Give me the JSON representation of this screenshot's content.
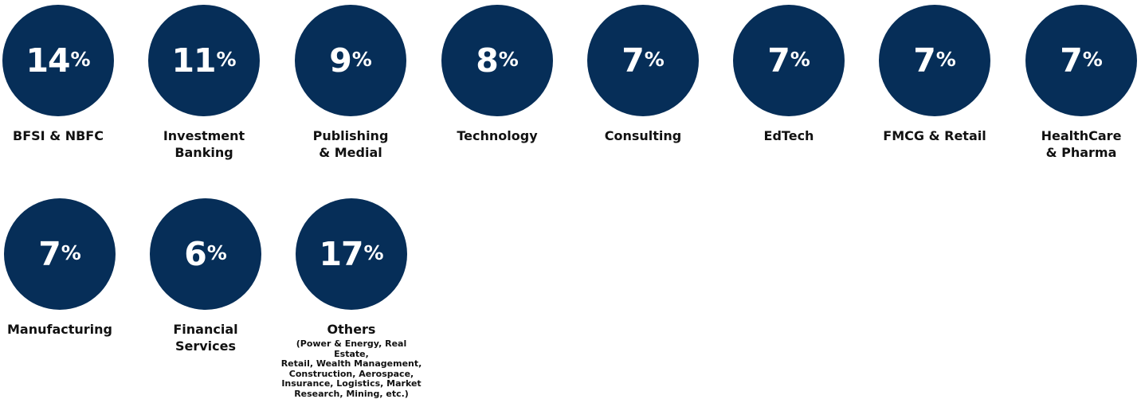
{
  "chart_data": {
    "type": "bubble",
    "title": "",
    "unit": "%",
    "categories": [
      "BFSI & NBFC",
      "Investment Banking",
      "Publishing & Medial",
      "Technology",
      "Consulting",
      "EdTech",
      "FMCG & Retail",
      "HealthCare & Pharma",
      "Manufacturing",
      "Financial Services",
      "Others"
    ],
    "values": [
      14,
      11,
      9,
      8,
      7,
      7,
      7,
      7,
      7,
      6,
      17
    ],
    "items": [
      {
        "value": 14,
        "unit": "%",
        "label": "BFSI & NBFC"
      },
      {
        "value": 11,
        "unit": "%",
        "label": "Investment\nBanking"
      },
      {
        "value": 9,
        "unit": "%",
        "label": "Publishing\n& Medial"
      },
      {
        "value": 8,
        "unit": "%",
        "label": "Technology"
      },
      {
        "value": 7,
        "unit": "%",
        "label": "Consulting"
      },
      {
        "value": 7,
        "unit": "%",
        "label": "EdTech"
      },
      {
        "value": 7,
        "unit": "%",
        "label": "FMCG & Retail"
      },
      {
        "value": 7,
        "unit": "%",
        "label": "HealthCare\n& Pharma"
      },
      {
        "value": 7,
        "unit": "%",
        "label": "Manufacturing"
      },
      {
        "value": 6,
        "unit": "%",
        "label": "Financial\nServices"
      },
      {
        "value": 17,
        "unit": "%",
        "label": "Others",
        "sublabel": "(Power & Energy, Real Estate,\nRetail, Wealth Management,\nConstruction, Aerospace,\nInsurance, Logistics, Market\nResearch, Mining, etc.)"
      }
    ],
    "colors": {
      "circle": "#062e58",
      "value_text": "#ffffff",
      "label_text": "#111111"
    }
  }
}
